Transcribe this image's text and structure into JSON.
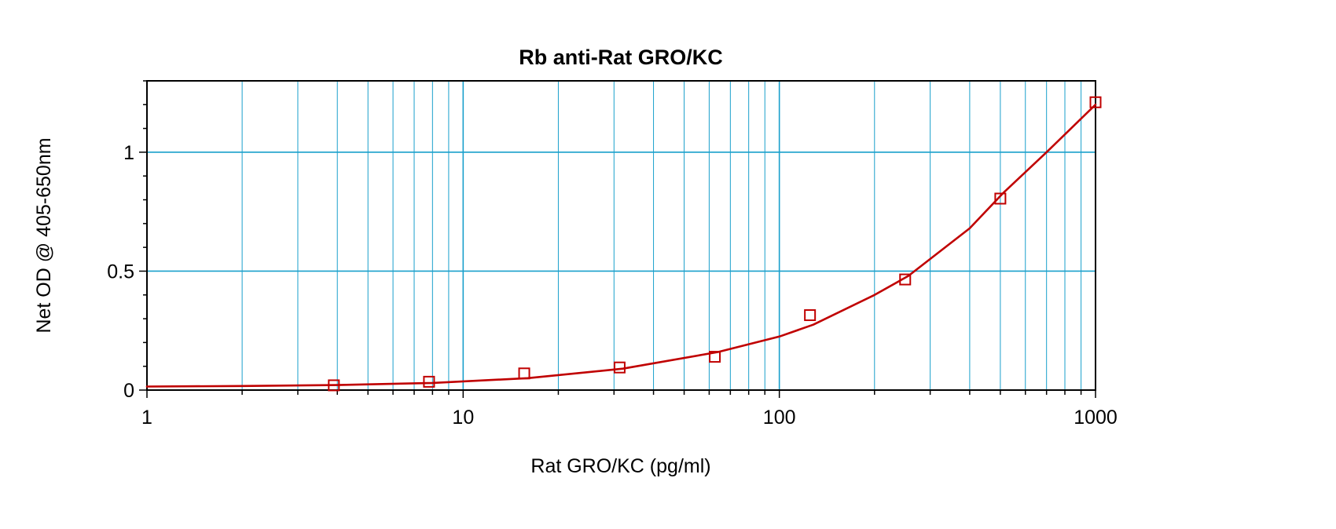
{
  "chart_data": {
    "type": "scatter",
    "title": "Rb anti-Rat GRO/KC",
    "xlabel": "Rat GRO/KC (pg/ml)",
    "ylabel": "Net OD @ 405-650nm",
    "xscale": "log",
    "xlim": [
      1,
      1000
    ],
    "ylim": [
      0,
      1.3
    ],
    "grid": true,
    "x_ticks": [
      {
        "value": 1,
        "label": "1"
      },
      {
        "value": 10,
        "label": "10"
      },
      {
        "value": 100,
        "label": "100"
      },
      {
        "value": 1000,
        "label": "1000"
      }
    ],
    "y_ticks": [
      {
        "value": 0,
        "label": "0"
      },
      {
        "value": 0.5,
        "label": "0.5"
      },
      {
        "value": 1,
        "label": "1"
      }
    ],
    "series": [
      {
        "kind": "points",
        "marker": "open-square",
        "x": [
          3.9,
          7.8,
          15.6,
          31.25,
          62.5,
          125,
          250,
          500,
          1000
        ],
        "y": [
          0.02,
          0.035,
          0.07,
          0.095,
          0.14,
          0.315,
          0.465,
          0.805,
          1.21
        ]
      },
      {
        "kind": "fit-curve",
        "x": [
          1,
          2,
          4,
          8,
          16,
          32,
          64,
          100,
          128,
          200,
          256,
          400,
          512,
          700,
          1000
        ],
        "y": [
          0.015,
          0.017,
          0.021,
          0.03,
          0.05,
          0.09,
          0.16,
          0.225,
          0.275,
          0.4,
          0.48,
          0.68,
          0.83,
          1.0,
          1.2
        ]
      }
    ],
    "colors": {
      "grid": "#1aa0cc",
      "series": "#c00000",
      "frame": "#000000"
    }
  }
}
